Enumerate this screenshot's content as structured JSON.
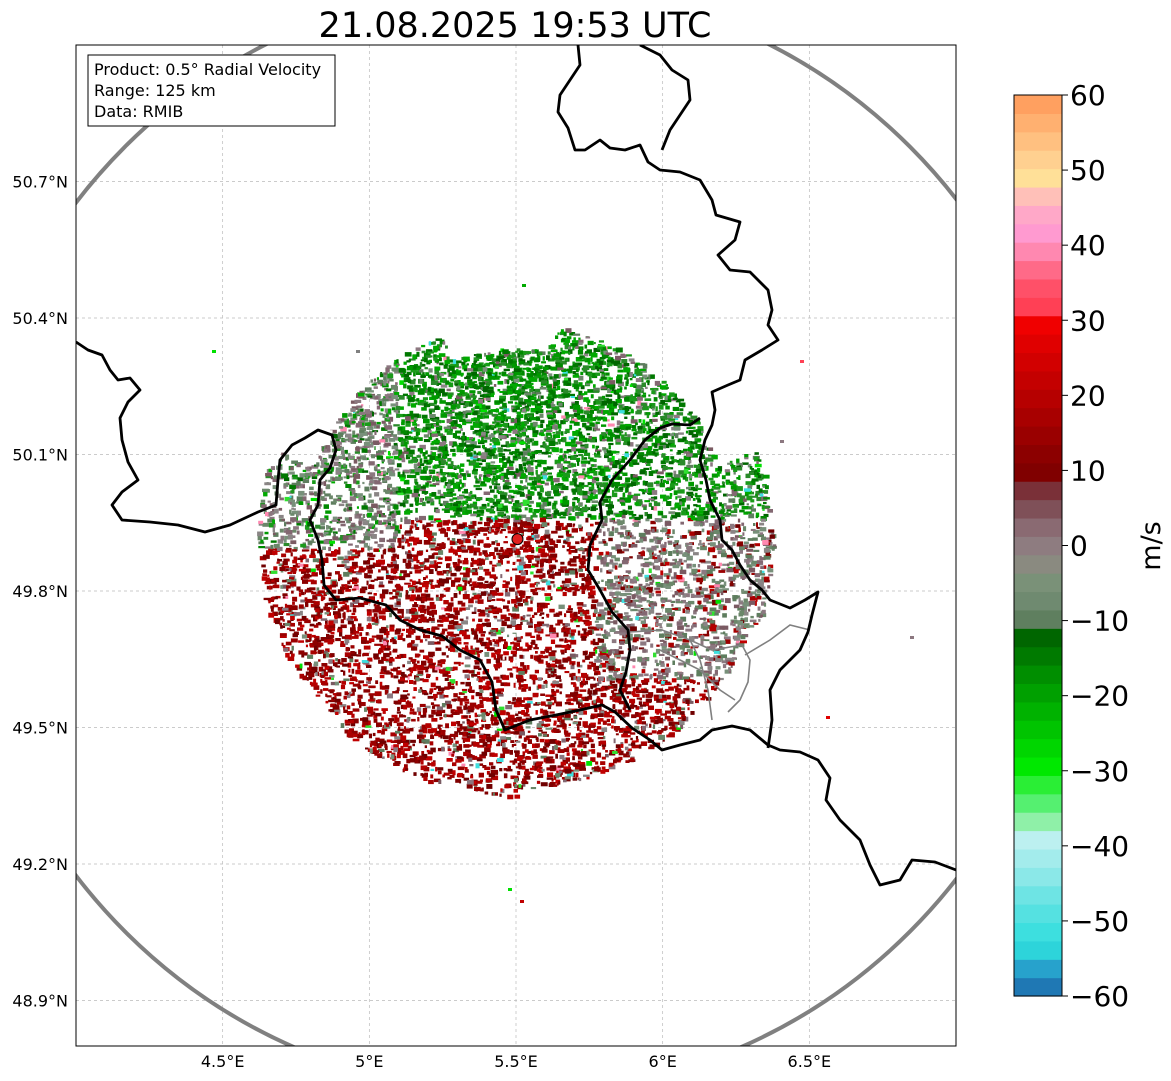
{
  "title": "21.08.2025 19:53 UTC",
  "info_box": {
    "product": "Product: 0.5° Radial Velocity",
    "range": "Range: 125 km",
    "data": "Data: RMIB"
  },
  "map": {
    "lon_range": [
      4.0,
      7.0
    ],
    "lat_range": [
      48.8,
      51.0
    ],
    "lon_ticks": [
      {
        "value": 4.5,
        "label": "4.5°E"
      },
      {
        "value": 5.0,
        "label": "5°E"
      },
      {
        "value": 5.5,
        "label": "5.5°E"
      },
      {
        "value": 6.0,
        "label": "6°E"
      },
      {
        "value": 6.5,
        "label": "6.5°E"
      }
    ],
    "lat_ticks": [
      {
        "value": 50.7,
        "label": "50.7°N"
      },
      {
        "value": 50.4,
        "label": "50.4°N"
      },
      {
        "value": 50.1,
        "label": "50.1°N"
      },
      {
        "value": 49.8,
        "label": "49.8°N"
      },
      {
        "value": 49.5,
        "label": "49.5°N"
      },
      {
        "value": 49.2,
        "label": "49.2°N"
      },
      {
        "value": 48.9,
        "label": "48.9°N"
      }
    ],
    "radar_site": {
      "lon": 5.505,
      "lat": 49.914
    },
    "range_km": 125,
    "grid": true
  },
  "colorbar": {
    "label": "m/s",
    "min": -60,
    "max": 60,
    "ticks": [
      {
        "value": 60,
        "label": "60"
      },
      {
        "value": 50,
        "label": "50"
      },
      {
        "value": 40,
        "label": "40"
      },
      {
        "value": 30,
        "label": "30"
      },
      {
        "value": 20,
        "label": "20"
      },
      {
        "value": 10,
        "label": "10"
      },
      {
        "value": 0,
        "label": "0"
      },
      {
        "value": -10,
        "label": "−10"
      },
      {
        "value": -20,
        "label": "−20"
      },
      {
        "value": -30,
        "label": "−30"
      },
      {
        "value": -40,
        "label": "−40"
      },
      {
        "value": -50,
        "label": "−50"
      },
      {
        "value": -60,
        "label": "−60"
      }
    ],
    "colors": [
      "#1f78b4",
      "#27a2cc",
      "#2dd4da",
      "#3ddfdf",
      "#55e1e1",
      "#6ee4e4",
      "#8be8e8",
      "#a3ecec",
      "#bcf0f0",
      "#8ff0a8",
      "#55f070",
      "#2aee35",
      "#00e800",
      "#00d600",
      "#00c400",
      "#00b200",
      "#00a000",
      "#008e00",
      "#007a00",
      "#006600",
      "#5f7f5f",
      "#6f8a70",
      "#7a9178",
      "#8a8a80",
      "#8e7c80",
      "#8a6a72",
      "#7f5058",
      "#7a3038",
      "#800000",
      "#8c0000",
      "#9a0000",
      "#a80000",
      "#b60000",
      "#c40000",
      "#d20000",
      "#e00000",
      "#f00000",
      "#ff4055",
      "#ff5068",
      "#ff6a88",
      "#ff88b0",
      "#ff9ad0",
      "#ffa8c8",
      "#ffc0b8",
      "#ffe098",
      "#ffd090",
      "#ffc080",
      "#ffb070",
      "#ffa060"
    ]
  },
  "colors": {
    "range_ring": "#808080",
    "border": "#000000",
    "province": "#808080",
    "site_marker": "#e02020"
  },
  "echo": {
    "approaching_shades": [
      "#006600",
      "#007800",
      "#008800",
      "#009900",
      "#00aa00",
      "#1a9a1a",
      "#2a8a2a"
    ],
    "receding_shades": [
      "#700000",
      "#800000",
      "#8c0000",
      "#9a0000",
      "#a80000",
      "#b40000",
      "#c00000"
    ],
    "neutral_shades": [
      "#5e7d5e",
      "#6b876a",
      "#78907a",
      "#8a8585",
      "#8c7880",
      "#836872",
      "#7a5a62"
    ],
    "speckle_shades": [
      "#00e000",
      "#30e030",
      "#3ddfdf",
      "#ff88b0",
      "#ffffff"
    ]
  }
}
